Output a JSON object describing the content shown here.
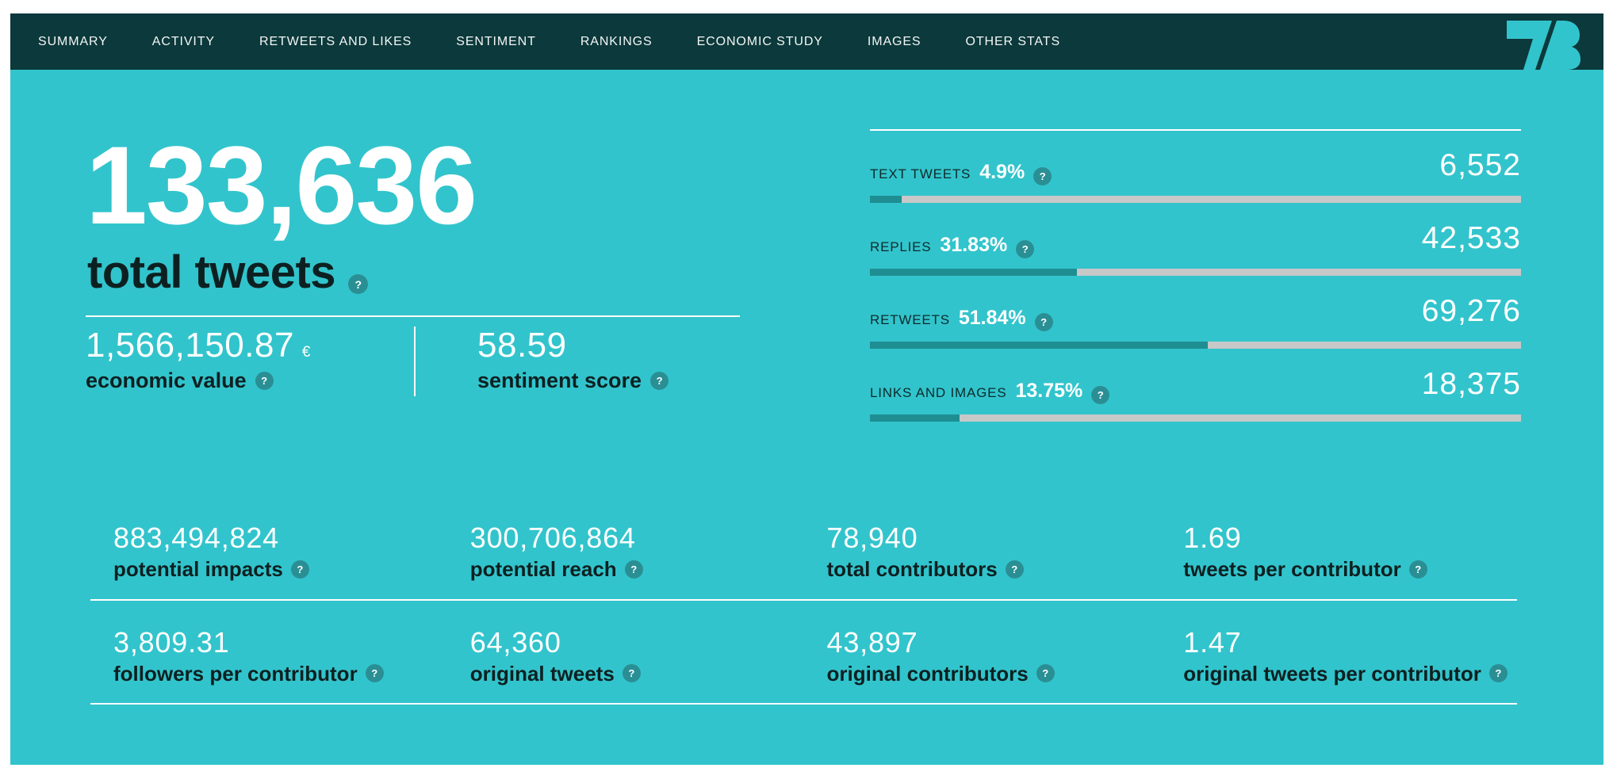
{
  "nav": {
    "items": [
      "SUMMARY",
      "ACTIVITY",
      "RETWEETS AND LIKES",
      "SENTIMENT",
      "RANKINGS",
      "ECONOMIC STUDY",
      "IMAGES",
      "OTHER STATS"
    ]
  },
  "icons": {
    "help_glyph": "?"
  },
  "hero": {
    "value": "133,636",
    "label": "total tweets"
  },
  "economic": {
    "value": "1,566,150.87",
    "currency": "€",
    "label": "economic value"
  },
  "sentiment": {
    "value": "58.59",
    "label": "sentiment score"
  },
  "breakdown": {
    "items": [
      {
        "label": "TEXT TWEETS",
        "percent": "4.9%",
        "percent_value": 4.9,
        "value": "6,552"
      },
      {
        "label": "REPLIES",
        "percent": "31.83%",
        "percent_value": 31.83,
        "value": "42,533"
      },
      {
        "label": "RETWEETS",
        "percent": "51.84%",
        "percent_value": 51.84,
        "value": "69,276"
      },
      {
        "label": "LINKS AND IMAGES",
        "percent": "13.75%",
        "percent_value": 13.75,
        "value": "18,375"
      }
    ]
  },
  "stats": {
    "rows": [
      [
        {
          "value": "883,494,824",
          "label": "potential impacts"
        },
        {
          "value": "300,706,864",
          "label": "potential reach"
        },
        {
          "value": "78,940",
          "label": "total contributors"
        },
        {
          "value": "1.69",
          "label": "tweets per contributor"
        }
      ],
      [
        {
          "value": "3,809.31",
          "label": "followers per contributor"
        },
        {
          "value": "64,360",
          "label": "original tweets"
        },
        {
          "value": "43,897",
          "label": "original contributors"
        },
        {
          "value": "1.47",
          "label": "original tweets per contributor"
        }
      ]
    ]
  },
  "colors": {
    "board_teal": "#32c4cc",
    "nav_dark_teal": "#0c393b",
    "bar_fill": "#1e8e92",
    "bar_track": "#c8c8c8",
    "help_circle": "#2a8f94",
    "value_white": "#ffffff",
    "label_dark": "#0d2021"
  },
  "chart_data": {
    "type": "bar",
    "categories": [
      "TEXT TWEETS",
      "REPLIES",
      "RETWEETS",
      "LINKS AND IMAGES"
    ],
    "series": [
      {
        "name": "percent_of_total",
        "values": [
          4.9,
          31.83,
          51.84,
          13.75
        ]
      },
      {
        "name": "tweet_count",
        "values": [
          6552,
          42533,
          69276,
          18375
        ]
      }
    ],
    "xlim": [
      0,
      100
    ],
    "title": "tweet type breakdown"
  }
}
